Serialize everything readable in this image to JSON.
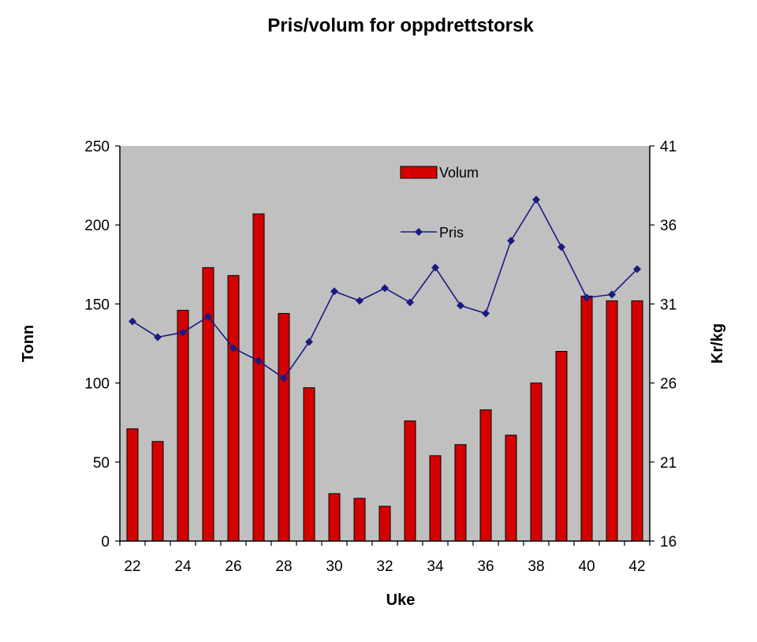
{
  "chart_data": {
    "type": "bar+line",
    "title": "Pris/volum for oppdrettstorsk",
    "xlabel": "Uke",
    "ylabel_left": "Tonn",
    "ylabel_right": "Kr/kg",
    "weeks": [
      22,
      23,
      24,
      25,
      26,
      27,
      28,
      29,
      30,
      31,
      32,
      33,
      34,
      35,
      36,
      37,
      38,
      39,
      40,
      41,
      42
    ],
    "x_tick_labels": [
      "22",
      "24",
      "26",
      "28",
      "30",
      "32",
      "34",
      "36",
      "38",
      "40",
      "42"
    ],
    "y_left_ticks": [
      "0",
      "50",
      "100",
      "150",
      "200",
      "250"
    ],
    "y_right_ticks": [
      "16",
      "21",
      "26",
      "31",
      "36",
      "41"
    ],
    "ylim_left": [
      0,
      250
    ],
    "ylim_right": [
      16,
      41
    ],
    "grid": false,
    "plot_background": "#c0c0c0",
    "legend_position": "top-center (inside plot)",
    "series": [
      {
        "name": "Volum",
        "kind": "bar",
        "axis": "left",
        "color": "#d40000",
        "values": [
          71,
          63,
          146,
          173,
          168,
          207,
          144,
          97,
          30,
          27,
          22,
          76,
          54,
          61,
          83,
          67,
          100,
          120,
          155,
          152,
          152
        ]
      },
      {
        "name": "Pris",
        "kind": "line",
        "axis": "right",
        "color": "#1a1a80",
        "values": [
          29.9,
          28.9,
          29.2,
          30.2,
          28.2,
          27.4,
          26.3,
          28.6,
          31.8,
          31.2,
          32.0,
          31.1,
          33.3,
          30.9,
          30.4,
          35.0,
          37.6,
          34.6,
          31.4,
          31.6,
          33.2
        ]
      }
    ]
  }
}
